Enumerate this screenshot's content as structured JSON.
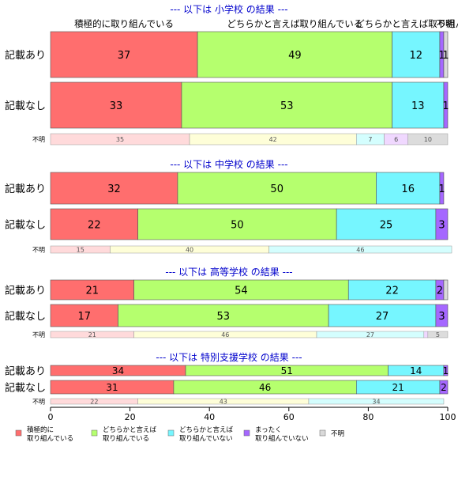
{
  "chart_data": {
    "type": "bar",
    "orientation": "horizontal",
    "stacked": true,
    "xlim": [
      0,
      100
    ],
    "x_ticks": [
      0,
      20,
      40,
      60,
      80,
      100
    ],
    "category_labels": [
      "積極的に取り組んでいる",
      "どちらかと言えば取り組んでいる",
      "どちらかと言えば取り組んでいない",
      "まったく取り組んでいない",
      "不明"
    ],
    "top_category_labels": [
      "積極的に取り組んでいる",
      "どちらかと言えば取り組んでいる",
      "どちらかと言えば取り組んでいない",
      "不明"
    ],
    "colors": [
      "#ff6e6e",
      "#b5ff6e",
      "#76f6ff",
      "#a567ff",
      "#d9d9d9"
    ],
    "unknown_colors": [
      "#ffdadb",
      "#fefed8",
      "#d4fefe",
      "#f0d8ff",
      "#dcdcdc"
    ],
    "legend": {
      "position": "bottom",
      "items": [
        {
          "line1": "積極的に",
          "line2": "取り組んでいる"
        },
        {
          "line1": "どちらかと言えば",
          "line2": "取り組んでいる"
        },
        {
          "line1": "どちらかと言えば",
          "line2": "取り組んでいない"
        },
        {
          "line1": "まったく",
          "line2": "取り組んでいない"
        },
        {
          "line1": "不明",
          "line2": ""
        }
      ]
    },
    "panels": [
      {
        "title": "--- 以下は 小学校 の結果 ---",
        "rows": [
          {
            "label": "記載あり",
            "values": [
              37,
              49,
              12,
              1,
              1
            ],
            "value_labels": [
              "37",
              "49",
              "12",
              "1",
              "1"
            ]
          },
          {
            "label": "記載なし",
            "values": [
              33,
              53,
              13,
              1,
              0
            ],
            "value_labels": [
              "33",
              "53",
              "13",
              "1",
              ""
            ]
          }
        ],
        "unknown": {
          "label": "不明",
          "values": [
            35,
            42,
            7,
            6,
            10
          ]
        }
      },
      {
        "title": "--- 以下は 中学校 の結果 ---",
        "rows": [
          {
            "label": "記載あり",
            "values": [
              32,
              50,
              16,
              1,
              0
            ],
            "value_labels": [
              "32",
              "50",
              "16",
              "1",
              ""
            ]
          },
          {
            "label": "記載なし",
            "values": [
              22,
              50,
              25,
              3,
              0
            ],
            "value_labels": [
              "22",
              "50",
              "25",
              "3",
              ""
            ]
          }
        ],
        "unknown": {
          "label": "不明",
          "values": [
            15,
            40,
            46,
            0,
            0
          ]
        }
      },
      {
        "title": "--- 以下は 高等学校 の結果 ---",
        "rows": [
          {
            "label": "記載あり",
            "values": [
              21,
              54,
              22,
              2,
              1
            ],
            "value_labels": [
              "21",
              "54",
              "22",
              "2",
              ""
            ]
          },
          {
            "label": "記載なし",
            "values": [
              17,
              53,
              27,
              3,
              0
            ],
            "value_labels": [
              "17",
              "53",
              "27",
              "3",
              ""
            ]
          }
        ],
        "unknown": {
          "label": "不明",
          "values": [
            21,
            46,
            27,
            1,
            5
          ]
        }
      },
      {
        "title": "--- 以下は 特別支援学校 の結果 ---",
        "rows": [
          {
            "label": "記載あり",
            "values": [
              34,
              51,
              14,
              1,
              0
            ],
            "value_labels": [
              "34",
              "51",
              "14",
              "1",
              ""
            ]
          },
          {
            "label": "記載なし",
            "values": [
              31,
              46,
              21,
              2,
              0
            ],
            "value_labels": [
              "31",
              "46",
              "21",
              "2",
              ""
            ]
          }
        ],
        "unknown": {
          "label": "不明",
          "values": [
            22,
            43,
            34,
            0,
            0
          ]
        }
      }
    ]
  }
}
